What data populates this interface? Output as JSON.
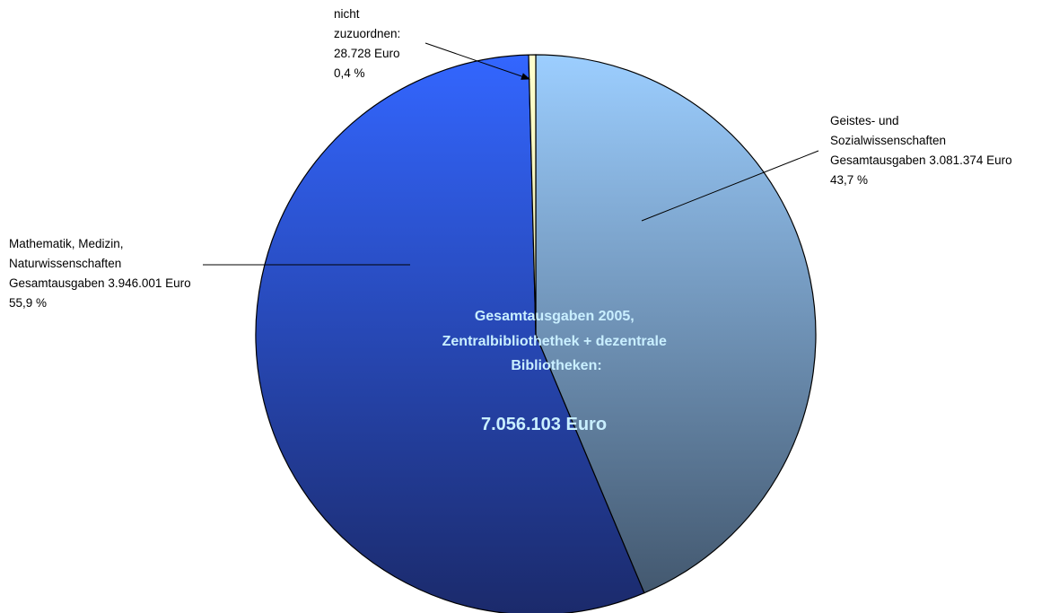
{
  "chart_data": {
    "type": "pie",
    "slices": [
      {
        "label_lines": [
          "Geistes- und",
          "Sozialwissenschaften",
          "Gesamtausgaben 3.081.374 Euro",
          "43,7 %"
        ],
        "value": 3081374,
        "percent": 43.7,
        "color_top": "#9cceff",
        "color_bottom": "#43586f"
      },
      {
        "label_lines": [
          "Mathematik, Medizin,",
          "Naturwissenschaften",
          "Gesamtausgaben 3.946.001 Euro",
          "55,9 %"
        ],
        "value": 3946001,
        "percent": 55.9,
        "color_top": "#3366ff",
        "color_bottom": "#1b2a6b"
      },
      {
        "label_lines": [
          "nicht",
          "zuzuordnen:",
          "28.728 Euro",
          "0,4 %"
        ],
        "value": 28728,
        "percent": 0.4,
        "color_top": "#ffffcc",
        "color_bottom": "#e8e8b0"
      }
    ],
    "center_text": {
      "lines": [
        "Gesamtausgaben 2005,",
        "Zentralbibliothethek + dezentrale",
        "Bibliotheken:"
      ],
      "total": "7.056.103 Euro"
    },
    "legend": "none"
  }
}
